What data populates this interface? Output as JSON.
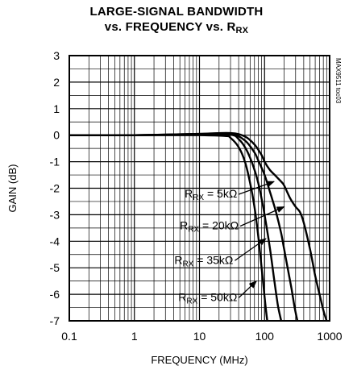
{
  "title": {
    "line1": "LARGE-SIGNAL BANDWIDTH",
    "line2_prefix": "vs. FREQUENCY vs. R",
    "line2_sub": "RX"
  },
  "watermark": "MAX9511 toc03",
  "chart_data": {
    "type": "line",
    "title": "LARGE-SIGNAL BANDWIDTH vs. FREQUENCY vs. RRX",
    "xlabel": "FREQUENCY (MHz)",
    "ylabel": "GAIN (dB)",
    "xscale": "log",
    "xlim": [
      0.1,
      1000
    ],
    "ylim": [
      -7,
      3
    ],
    "xticks": [
      0.1,
      1,
      10,
      100,
      1000
    ],
    "xtick_labels": [
      "0.1",
      "1",
      "10",
      "100",
      "1000"
    ],
    "yticks": [
      3,
      2,
      1,
      0,
      -1,
      -2,
      -3,
      -4,
      -5,
      -6,
      -7
    ],
    "ytick_labels": [
      "3",
      "2",
      "1",
      "0",
      "-1",
      "-2",
      "-3",
      "-4",
      "-5",
      "-6",
      "-7"
    ],
    "grid": true,
    "legend": "annotations with arrows",
    "series": [
      {
        "name": "RRX = 5kΩ",
        "label_prefix": "R",
        "label_sub": "RX",
        "label_suffix": " = 5kΩ",
        "x": [
          0.1,
          1,
          10,
          30,
          50,
          70,
          90,
          100,
          120,
          150,
          180,
          200,
          250,
          300,
          350,
          400,
          500,
          600,
          700,
          800,
          900
        ],
        "y": [
          0,
          0,
          0.05,
          0.08,
          -0.05,
          -0.35,
          -0.75,
          -1.0,
          -1.3,
          -1.55,
          -1.75,
          -1.9,
          -2.4,
          -2.7,
          -2.9,
          -3.3,
          -4.3,
          -5.3,
          -6.0,
          -6.6,
          -7.0
        ]
      },
      {
        "name": "RRX = 20kΩ",
        "label_prefix": "R",
        "label_sub": "RX",
        "label_suffix": " = 20kΩ",
        "x": [
          0.1,
          1,
          10,
          30,
          50,
          70,
          80,
          100,
          120,
          150,
          180,
          200,
          230,
          260,
          290,
          320
        ],
        "y": [
          0,
          0,
          0.05,
          0.05,
          -0.2,
          -0.65,
          -0.95,
          -1.5,
          -2.1,
          -2.9,
          -3.7,
          -4.3,
          -5.1,
          -5.8,
          -6.5,
          -7.0
        ]
      },
      {
        "name": "RRX = 35kΩ",
        "label_prefix": "R",
        "label_sub": "RX",
        "label_suffix": " = 35kΩ",
        "x": [
          0.1,
          1,
          10,
          30,
          40,
          50,
          60,
          70,
          80,
          90,
          100,
          120,
          140,
          160,
          180
        ],
        "y": [
          0,
          0,
          0.03,
          0.02,
          -0.15,
          -0.45,
          -0.85,
          -1.3,
          -1.8,
          -2.4,
          -3.0,
          -4.2,
          -5.4,
          -6.4,
          -7.0
        ]
      },
      {
        "name": "RRX = 50kΩ",
        "label_prefix": "R",
        "label_sub": "RX",
        "label_suffix": " = 50kΩ",
        "x": [
          0.1,
          1,
          10,
          25,
          30,
          40,
          50,
          60,
          70,
          80,
          90,
          100,
          110
        ],
        "y": [
          0,
          0,
          0,
          -0.03,
          -0.1,
          -0.45,
          -1.0,
          -1.8,
          -2.7,
          -3.8,
          -5.0,
          -6.1,
          -7.0
        ]
      }
    ],
    "annotations": [
      {
        "series": 0,
        "text_at": [
          38,
          -2.35
        ],
        "arrow_to": [
          140,
          -1.75
        ]
      },
      {
        "series": 1,
        "text_at": [
          40,
          -3.55
        ],
        "arrow_to": [
          200,
          -2.7
        ]
      },
      {
        "series": 2,
        "text_at": [
          33,
          -4.85
        ],
        "arrow_to": [
          105,
          -3.9
        ]
      },
      {
        "series": 3,
        "text_at": [
          38,
          -6.25
        ],
        "arrow_to": [
          75,
          -5.5
        ]
      }
    ]
  }
}
